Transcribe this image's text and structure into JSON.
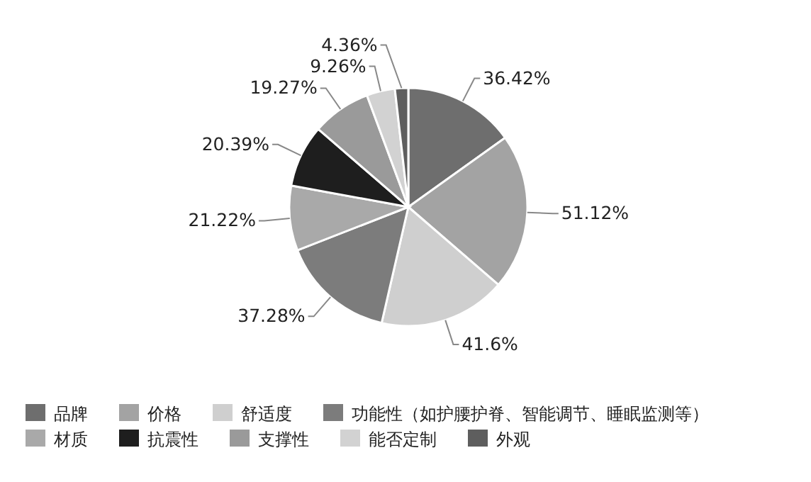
{
  "chart_data": {
    "type": "pie",
    "categories": [
      "品牌",
      "价格",
      "舒适度",
      "功能性（如护腰护脊、智能调节、睡眠监测等）",
      "材质",
      "抗震性",
      "支撑性",
      "能否定制",
      "外观"
    ],
    "values": [
      36.42,
      51.12,
      41.6,
      37.28,
      21.22,
      20.39,
      19.27,
      9.26,
      4.36
    ],
    "value_labels": [
      "36.42%",
      "51.12%",
      "41.6%",
      "37.28%",
      "21.22%",
      "20.39%",
      "19.27%",
      "9.26%",
      "4.36%"
    ],
    "colors": [
      "#6e6e6e",
      "#a3a3a3",
      "#cfcfcf",
      "#7c7c7c",
      "#a9a9a9",
      "#1e1e1e",
      "#9a9a9a",
      "#d2d2d2",
      "#5e5e5e"
    ],
    "legend": "bottom"
  }
}
